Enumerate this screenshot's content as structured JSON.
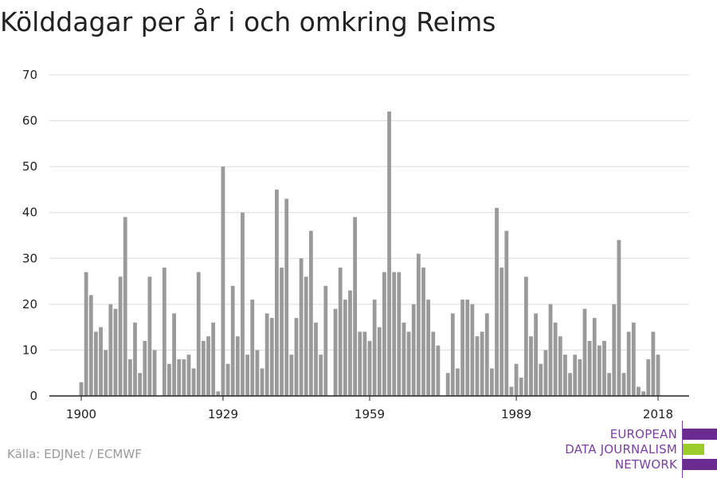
{
  "title": "Kölddagar per år i och omkring Reims",
  "source": "Källa: EDJNet / ECMWF",
  "logo": {
    "lines": [
      "EUROPEAN",
      "DATA JOURNALISM",
      "NETWORK"
    ],
    "text_color": "#7b3fa0",
    "bar_colors": [
      "#6a2c91",
      "#9ccc2b",
      "#6a2c91"
    ],
    "bar_fractions": [
      1.0,
      0.62,
      1.0
    ]
  },
  "chart_data": {
    "type": "bar",
    "title": "Kölddagar per år i och omkring Reims",
    "x_start": 1900,
    "x_end": 2018,
    "xticks": [
      1900,
      1929,
      1959,
      1989,
      2018
    ],
    "values": [
      3,
      27,
      22,
      14,
      15,
      10,
      20,
      19,
      26,
      39,
      8,
      16,
      5,
      12,
      26,
      10,
      0,
      28,
      7,
      18,
      8,
      8,
      9,
      6,
      27,
      12,
      13,
      16,
      1,
      50,
      7,
      24,
      13,
      40,
      9,
      21,
      10,
      6,
      18,
      17,
      45,
      28,
      43,
      9,
      17,
      30,
      26,
      36,
      16,
      9,
      24,
      0,
      19,
      28,
      21,
      23,
      39,
      14,
      14,
      12,
      21,
      15,
      27,
      62,
      27,
      27,
      16,
      14,
      20,
      31,
      28,
      21,
      14,
      11,
      0,
      5,
      18,
      6,
      21,
      21,
      20,
      13,
      14,
      18,
      6,
      41,
      28,
      36,
      2,
      7,
      4,
      26,
      13,
      18,
      7,
      10,
      20,
      16,
      13,
      9,
      5,
      9,
      8,
      19,
      12,
      17,
      11,
      12,
      5,
      20,
      34,
      5,
      14,
      16,
      2,
      1,
      8,
      14,
      9
    ],
    "ylim": [
      0,
      70
    ],
    "yticks": [
      0,
      10,
      20,
      30,
      40,
      50,
      60,
      70
    ],
    "grid": true,
    "legend": "none",
    "bar_color": "#9a9a9a"
  }
}
